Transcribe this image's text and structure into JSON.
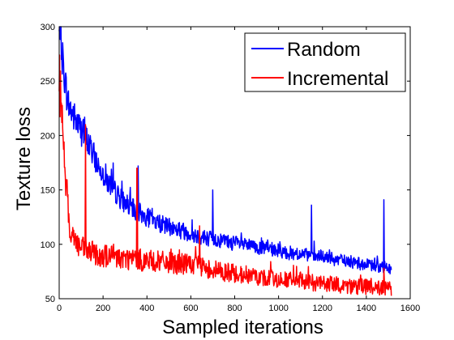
{
  "chart_data": {
    "type": "line",
    "title": "",
    "xlabel": "Sampled iterations",
    "ylabel": "Texture loss",
    "xlim": [
      0,
      1600
    ],
    "ylim": [
      50,
      300
    ],
    "xticks": [
      0,
      200,
      400,
      600,
      800,
      1000,
      1200,
      1400,
      1600
    ],
    "yticks": [
      50,
      100,
      150,
      200,
      250,
      300
    ],
    "grid": false,
    "legend_position": "top-right",
    "series": [
      {
        "name": "Random",
        "color": "#0000ff",
        "points": [
          [
            0,
            292
          ],
          [
            10,
            280
          ],
          [
            20,
            262
          ],
          [
            30,
            245
          ],
          [
            40,
            230
          ],
          [
            60,
            220
          ],
          [
            80,
            212
          ],
          [
            100,
            205
          ],
          [
            120,
            198
          ],
          [
            140,
            190
          ],
          [
            160,
            180
          ],
          [
            180,
            172
          ],
          [
            200,
            165
          ],
          [
            220,
            158
          ],
          [
            240,
            152
          ],
          [
            260,
            147
          ],
          [
            280,
            142
          ],
          [
            300,
            138
          ],
          [
            320,
            135
          ],
          [
            340,
            132
          ],
          [
            360,
            129
          ],
          [
            380,
            127
          ],
          [
            400,
            125
          ],
          [
            450,
            120
          ],
          [
            500,
            116
          ],
          [
            550,
            113
          ],
          [
            600,
            110
          ],
          [
            650,
            107
          ],
          [
            700,
            105
          ],
          [
            750,
            103
          ],
          [
            800,
            101
          ],
          [
            850,
            99
          ],
          [
            900,
            97
          ],
          [
            950,
            96
          ],
          [
            1000,
            94
          ],
          [
            1050,
            92
          ],
          [
            1100,
            91
          ],
          [
            1150,
            89
          ],
          [
            1200,
            88
          ],
          [
            1250,
            86
          ],
          [
            1300,
            85
          ],
          [
            1350,
            83
          ],
          [
            1400,
            81
          ],
          [
            1450,
            80
          ],
          [
            1480,
            79
          ],
          [
            1500,
            78
          ],
          [
            1515,
            77
          ]
        ],
        "spikes": [
          [
            120,
            195
          ],
          [
            360,
            172
          ],
          [
            700,
            150
          ],
          [
            1150,
            136
          ],
          [
            1480,
            141
          ]
        ]
      },
      {
        "name": "Incremental",
        "color": "#ff0000",
        "points": [
          [
            0,
            262
          ],
          [
            5,
            240
          ],
          [
            10,
            220
          ],
          [
            20,
            195
          ],
          [
            30,
            160
          ],
          [
            40,
            130
          ],
          [
            50,
            115
          ],
          [
            70,
            105
          ],
          [
            90,
            98
          ],
          [
            110,
            95
          ],
          [
            150,
            92
          ],
          [
            200,
            90
          ],
          [
            250,
            88
          ],
          [
            300,
            87
          ],
          [
            350,
            86
          ],
          [
            400,
            85
          ],
          [
            450,
            84
          ],
          [
            500,
            83
          ],
          [
            550,
            82
          ],
          [
            600,
            81
          ],
          [
            650,
            79
          ],
          [
            700,
            77
          ],
          [
            750,
            75
          ],
          [
            800,
            73
          ],
          [
            850,
            72
          ],
          [
            900,
            70
          ],
          [
            950,
            69
          ],
          [
            1000,
            68
          ],
          [
            1050,
            67
          ],
          [
            1100,
            66
          ],
          [
            1150,
            65
          ],
          [
            1200,
            64
          ],
          [
            1250,
            63
          ],
          [
            1300,
            62
          ],
          [
            1350,
            61
          ],
          [
            1400,
            61
          ],
          [
            1450,
            60
          ],
          [
            1500,
            59
          ],
          [
            1515,
            58
          ]
        ],
        "spikes": [
          [
            120,
            210
          ],
          [
            355,
            170
          ],
          [
            640,
            117
          ],
          [
            1480,
            78
          ]
        ]
      }
    ]
  }
}
